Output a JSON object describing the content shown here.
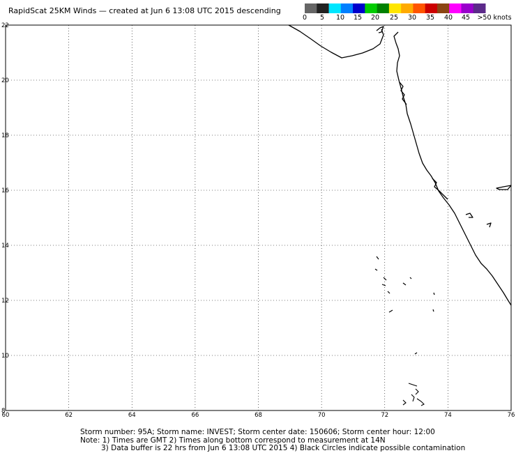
{
  "title": "RapidScat 25KM Winds — created at Jun  6 13:08 UTC 2015 descending",
  "legend": {
    "colors": [
      "#666666",
      "#222222",
      "#00e6ff",
      "#0080ff",
      "#0000cc",
      "#00cc00",
      "#008000",
      "#ffe600",
      "#ffaa00",
      "#ff5500",
      "#cc0000",
      "#8b4513",
      "#ff00ff",
      "#9900cc",
      "#5c2a8a"
    ],
    "labels": [
      "0",
      "5",
      "10",
      "15",
      "20",
      "25",
      "30",
      "35",
      "40",
      "45",
      ">50 knots"
    ]
  },
  "map": {
    "lon_ticks": [
      "60",
      "62",
      "64",
      "66",
      "68",
      "70",
      "72",
      "74",
      "76"
    ],
    "lat_ticks": [
      "8",
      "10",
      "12",
      "14",
      "16",
      "18",
      "20",
      "22"
    ],
    "lon_range": [
      60,
      76
    ],
    "lat_range": [
      8,
      22
    ],
    "grid": "dotted"
  },
  "footer": {
    "line1": "Storm number: 95A;  Storm name: INVEST;  Storm center date: 150606;  Storm center hour: 12:00",
    "line2": "Note: 1) Times are GMT  2) Times along bottom correspond to measurement at 14N",
    "line3": "3) Data buffer is 22 hrs from Jun  6 13:08 UTC 2015  4) Black Circles indicate possible contamination"
  }
}
